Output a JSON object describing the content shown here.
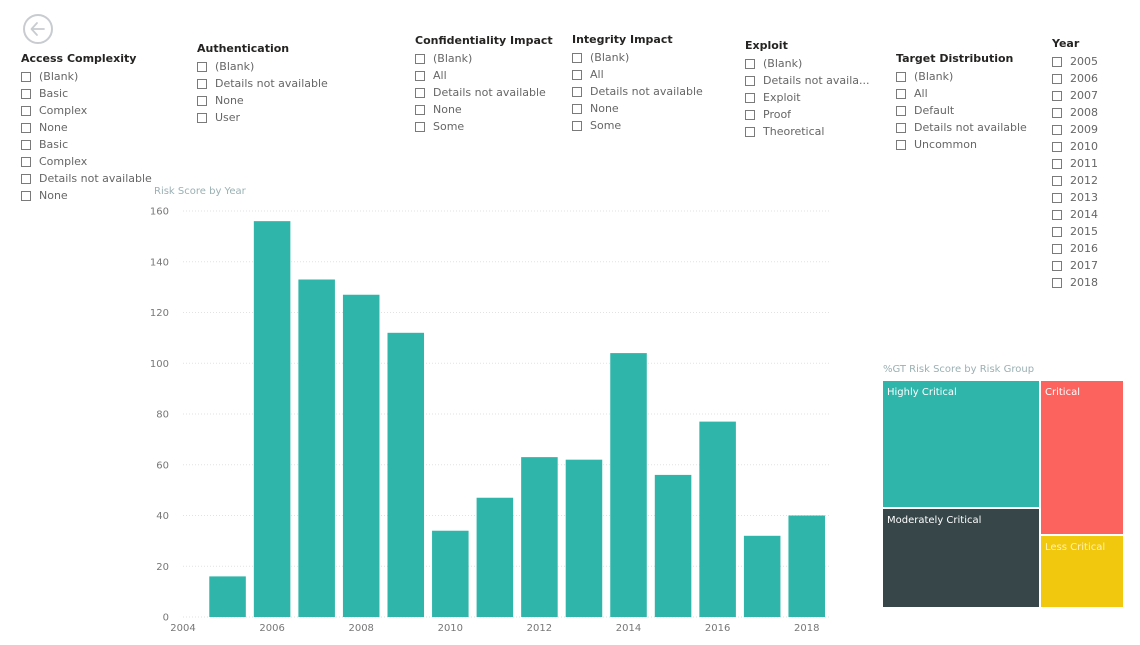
{
  "slicers": {
    "access_complexity": {
      "title": "Access Complexity",
      "items": [
        "(Blank)",
        "Basic",
        "Complex",
        "None",
        "Basic",
        "Complex",
        "Details not available",
        "None"
      ]
    },
    "authentication": {
      "title": "Authentication",
      "items": [
        "(Blank)",
        "Details not available",
        "None",
        "User"
      ]
    },
    "confidentiality_impact": {
      "title": "Confidentiality Impact",
      "items": [
        "(Blank)",
        "All",
        "Details not available",
        "None",
        "Some"
      ]
    },
    "integrity_impact": {
      "title": "Integrity Impact",
      "items": [
        "(Blank)",
        "All",
        "Details not available",
        "None",
        "Some"
      ]
    },
    "exploit": {
      "title": "Exploit",
      "items": [
        "(Blank)",
        "Details not availa...",
        "Exploit",
        "Proof",
        "Theoretical"
      ]
    },
    "target_distribution": {
      "title": "Target Distribution",
      "items": [
        "(Blank)",
        "All",
        "Default",
        "Details not available",
        "Uncommon"
      ]
    },
    "year": {
      "title": "Year",
      "items": [
        "2005",
        "2006",
        "2007",
        "2008",
        "2009",
        "2010",
        "2011",
        "2012",
        "2013",
        "2014",
        "2015",
        "2016",
        "2017",
        "2018"
      ]
    }
  },
  "chart_data": [
    {
      "type": "bar",
      "title": "Risk Score by Year",
      "categories": [
        2005,
        2006,
        2007,
        2008,
        2009,
        2010,
        2011,
        2012,
        2013,
        2014,
        2015,
        2016,
        2017,
        2018
      ],
      "values": [
        16,
        156,
        133,
        127,
        112,
        34,
        47,
        63,
        62,
        104,
        56,
        77,
        32,
        40
      ],
      "xlim": [
        2004,
        2018.5
      ],
      "xticks": [
        2004,
        2006,
        2008,
        2010,
        2012,
        2014,
        2016,
        2018
      ],
      "ylim": [
        0,
        160
      ],
      "yticks": [
        0,
        20,
        40,
        60,
        80,
        100,
        120,
        140,
        160
      ],
      "grid": true,
      "color": "#2fb5aa"
    },
    {
      "type": "treemap",
      "title": "%GT Risk Score by Risk Group",
      "groups": [
        {
          "name": "Highly Critical",
          "color": "#2fb5aa",
          "label_color": "#ffffff"
        },
        {
          "name": "Critical",
          "color": "#fc625e",
          "label_color": "#ffffff"
        },
        {
          "name": "Moderately Critical",
          "color": "#374649",
          "label_color": "#ffffff"
        },
        {
          "name": "Less Critical",
          "color": "#f2c80f",
          "label_color": "#fff2b3"
        }
      ]
    }
  ]
}
